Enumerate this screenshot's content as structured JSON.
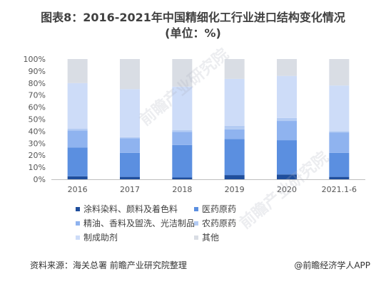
{
  "title": {
    "line1": "图表8：2016-2021年中国精细化工行业进口结构变化情况",
    "line2": "(单位：%)"
  },
  "chart_data": {
    "type": "bar",
    "stacked": true,
    "categories": [
      "2016",
      "2017",
      "2018",
      "2019",
      "2020",
      "2021.1-6"
    ],
    "ylim": [
      0,
      100
    ],
    "yticks": [
      "0%",
      "10%",
      "20%",
      "30%",
      "40%",
      "50%",
      "60%",
      "70%",
      "80%",
      "90%",
      "100%"
    ],
    "series": [
      {
        "name": "涂料染料、颜料及着色料",
        "color": "#1f4e9c",
        "values": [
          2.5,
          2,
          1.5,
          3.5,
          4,
          2
        ]
      },
      {
        "name": "医药原药",
        "color": "#5b8fe0",
        "values": [
          24,
          20,
          27,
          30,
          28.5,
          20
        ]
      },
      {
        "name": "精油、香料及盥洗、光洁制品",
        "color": "#8fb3ef",
        "values": [
          14,
          12,
          11,
          8,
          16,
          17
        ]
      },
      {
        "name": "农药原药",
        "color": "#b3cbf3",
        "values": [
          1.5,
          1,
          1.5,
          3,
          2.5,
          1
        ]
      },
      {
        "name": "制成助剂",
        "color": "#cddcf8",
        "values": [
          38,
          40,
          36,
          39,
          35,
          38
        ]
      },
      {
        "name": "其他",
        "color": "#d9dde4",
        "values": [
          20,
          25,
          23,
          16.5,
          14,
          22
        ]
      }
    ],
    "legend_position": "bottom"
  },
  "footer": {
    "source": "资料来源：海关总署 前瞻产业研究院整理",
    "brand": "@前瞻经济学人APP"
  },
  "watermark": "前瞻产业研究院"
}
